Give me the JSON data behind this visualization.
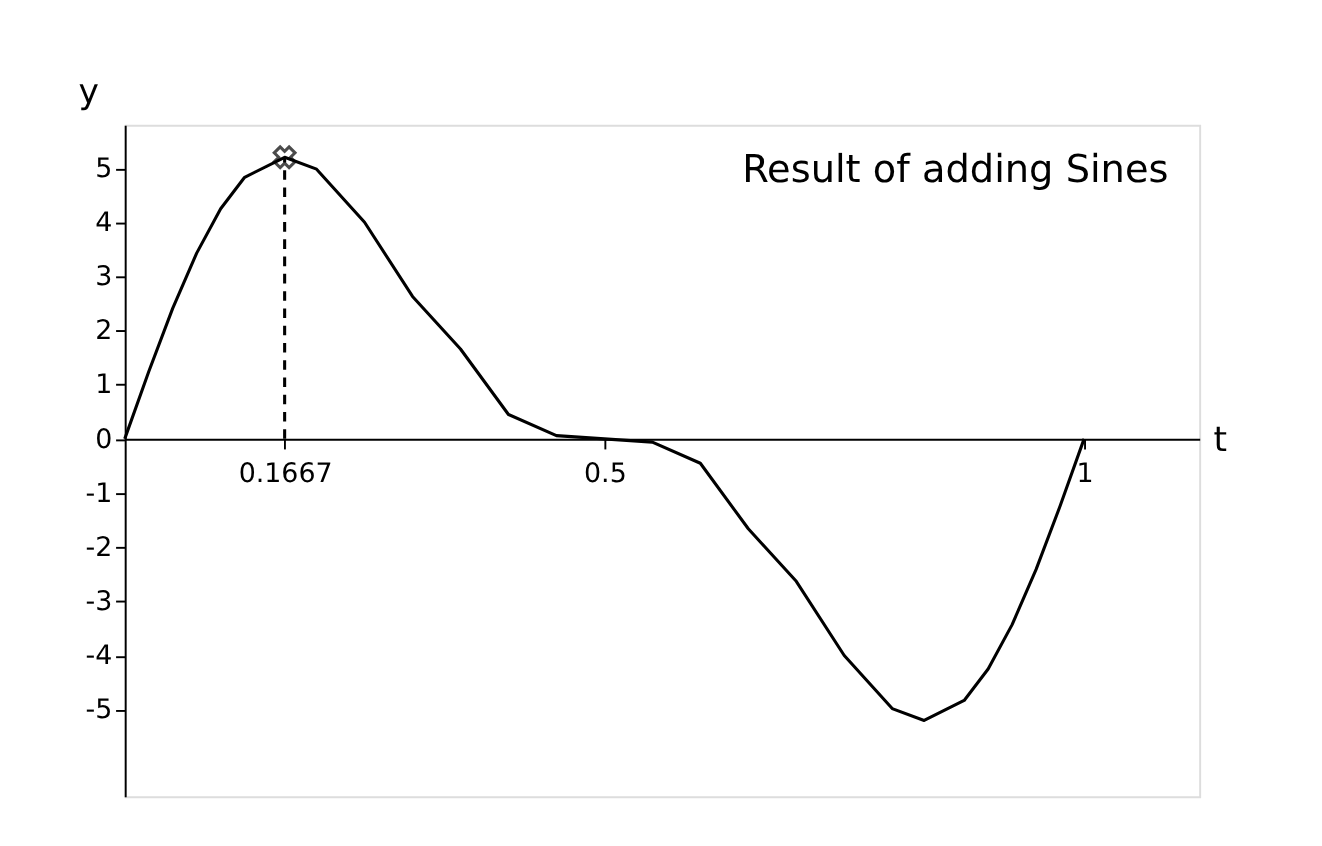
{
  "chart_data": {
    "type": "line",
    "title": "Result of adding Sines",
    "xlabel": "t",
    "ylabel": "y",
    "xlim": [
      0,
      1.12
    ],
    "ylim": [
      -6.6,
      5.8
    ],
    "xticks": [
      0.1667,
      0.5,
      1
    ],
    "yticks": [
      -5,
      -4,
      -3,
      -2,
      -1,
      0,
      1,
      2,
      3,
      4,
      5
    ],
    "grid": false,
    "series": [
      {
        "color": "#000000",
        "marker": "none",
        "line_style": "solid",
        "x": [
          0,
          0.025,
          0.05,
          0.075,
          0.1,
          0.125,
          0.1667,
          0.2,
          0.25,
          0.3,
          0.35,
          0.4,
          0.45,
          0.5,
          0.55,
          0.6,
          0.65,
          0.7,
          0.75,
          0.8,
          0.8333,
          0.875,
          0.9,
          0.925,
          0.95,
          0.975,
          1
        ],
        "values": [
          0,
          1.24,
          2.41,
          3.43,
          4.25,
          4.83,
          5.2,
          4.98,
          4.0,
          2.63,
          1.66,
          0.45,
          0.06,
          0,
          -0.06,
          -0.45,
          -1.66,
          -2.63,
          -4.0,
          -4.98,
          -5.2,
          -4.83,
          -4.25,
          -3.43,
          -2.41,
          -1.24,
          0
        ]
      },
      {
        "color": "#000000",
        "marker": "none",
        "line_style": "dashed",
        "x": [
          0.1667,
          0.1667
        ],
        "values": [
          0,
          5.2
        ]
      },
      {
        "type": "scatter",
        "color": "#000000",
        "marker": "cross",
        "x": [
          0.1667
        ],
        "values": [
          5.2
        ]
      }
    ]
  }
}
